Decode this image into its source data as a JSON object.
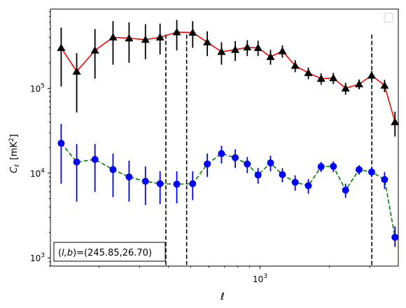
{
  "chart_data": {
    "type": "scatter",
    "title": "",
    "xlabel": "ℓ",
    "ylabel": "C_ℓ  [mK²]",
    "ylabel_main": "C",
    "ylabel_sub": "ℓ",
    "ylabel_unit": "[mK",
    "ylabel_unit_sup": "2",
    "ylabel_unit_close": "]",
    "xscale": "log",
    "yscale": "log",
    "xlim": [
      123,
      3980
    ],
    "ylim": [
      800,
      860000
    ],
    "x_ticks": [
      {
        "value": 1000,
        "base": "10",
        "exp": "3"
      }
    ],
    "y_ticks": [
      {
        "value": 1000,
        "base": "10",
        "exp": "3"
      },
      {
        "value": 10000,
        "base": "10",
        "exp": "4"
      },
      {
        "value": 100000,
        "base": "10",
        "exp": "5"
      }
    ],
    "grid": false,
    "legend": {
      "placement": "top-right",
      "entries": []
    },
    "annotation": {
      "text_prefix": "(",
      "text_vars": "l,b",
      "text_suffix": ")=(245.85,26.70)",
      "placement": "bottom-left"
    },
    "vlines": [
      390,
      480,
      3055
    ],
    "series": [
      {
        "marker": "triangle",
        "marker_color": "#000000",
        "line_color": "#ff0000",
        "line_style": "solid",
        "errorbar_color": "#000000",
        "points": [
          {
            "x": 137,
            "y": 300000,
            "lo": 105000,
            "hi": 520000
          },
          {
            "x": 160,
            "y": 158000,
            "lo": 52000,
            "hi": 260000
          },
          {
            "x": 192,
            "y": 280000,
            "lo": 130000,
            "hi": 500000
          },
          {
            "x": 230,
            "y": 400000,
            "lo": 190000,
            "hi": 620000
          },
          {
            "x": 270,
            "y": 390000,
            "lo": 200000,
            "hi": 600000
          },
          {
            "x": 318,
            "y": 375000,
            "lo": 220000,
            "hi": 570000
          },
          {
            "x": 368,
            "y": 400000,
            "lo": 250000,
            "hi": 580000
          },
          {
            "x": 435,
            "y": 460000,
            "lo": 280000,
            "hi": 640000
          },
          {
            "x": 510,
            "y": 455000,
            "lo": 300000,
            "hi": 620000
          },
          {
            "x": 590,
            "y": 350000,
            "lo": 240000,
            "hi": 470000
          },
          {
            "x": 680,
            "y": 270000,
            "lo": 190000,
            "hi": 350000
          },
          {
            "x": 780,
            "y": 285000,
            "lo": 210000,
            "hi": 360000
          },
          {
            "x": 880,
            "y": 305000,
            "lo": 240000,
            "hi": 370000
          },
          {
            "x": 980,
            "y": 300000,
            "lo": 240000,
            "hi": 365000
          },
          {
            "x": 1110,
            "y": 235000,
            "lo": 190000,
            "hi": 285000
          },
          {
            "x": 1250,
            "y": 275000,
            "lo": 230000,
            "hi": 320000
          },
          {
            "x": 1420,
            "y": 185000,
            "lo": 155000,
            "hi": 215000
          },
          {
            "x": 1620,
            "y": 152000,
            "lo": 128000,
            "hi": 176000
          },
          {
            "x": 1840,
            "y": 130000,
            "lo": 110000,
            "hi": 150000
          },
          {
            "x": 2080,
            "y": 132000,
            "lo": 112000,
            "hi": 152000
          },
          {
            "x": 2350,
            "y": 100000,
            "lo": 84000,
            "hi": 116000
          },
          {
            "x": 2690,
            "y": 112000,
            "lo": 97000,
            "hi": 127000
          },
          {
            "x": 3050,
            "y": 142000,
            "lo": 125000,
            "hi": 160000
          },
          {
            "x": 3470,
            "y": 108000,
            "lo": 90000,
            "hi": 126000
          },
          {
            "x": 3850,
            "y": 40000,
            "lo": 27000,
            "hi": 53000
          }
        ]
      },
      {
        "marker": "circle",
        "marker_color": "#0000ff",
        "line_color": "#008000",
        "line_style": "dashed",
        "errorbar_color": "#0000ff",
        "points": [
          {
            "x": 137,
            "y": 22500,
            "lo": 7500,
            "hi": 38000
          },
          {
            "x": 160,
            "y": 13500,
            "lo": 4600,
            "hi": 22000
          },
          {
            "x": 192,
            "y": 14500,
            "lo": 6000,
            "hi": 22000
          },
          {
            "x": 230,
            "y": 11000,
            "lo": 5200,
            "hi": 17000
          },
          {
            "x": 270,
            "y": 9000,
            "lo": 4600,
            "hi": 14000
          },
          {
            "x": 318,
            "y": 8000,
            "lo": 4200,
            "hi": 12000
          },
          {
            "x": 368,
            "y": 7500,
            "lo": 4300,
            "hi": 10500
          },
          {
            "x": 435,
            "y": 7400,
            "lo": 4400,
            "hi": 10500
          },
          {
            "x": 510,
            "y": 7500,
            "lo": 4800,
            "hi": 10500
          },
          {
            "x": 590,
            "y": 12800,
            "lo": 9000,
            "hi": 17000
          },
          {
            "x": 680,
            "y": 17000,
            "lo": 13000,
            "hi": 21000
          },
          {
            "x": 780,
            "y": 15200,
            "lo": 11500,
            "hi": 19000
          },
          {
            "x": 880,
            "y": 12800,
            "lo": 10000,
            "hi": 15500
          },
          {
            "x": 980,
            "y": 9500,
            "lo": 7500,
            "hi": 11500
          },
          {
            "x": 1110,
            "y": 13200,
            "lo": 10500,
            "hi": 16000
          },
          {
            "x": 1250,
            "y": 9600,
            "lo": 7800,
            "hi": 11400
          },
          {
            "x": 1420,
            "y": 7800,
            "lo": 6200,
            "hi": 9400
          },
          {
            "x": 1620,
            "y": 7100,
            "lo": 5700,
            "hi": 8500
          },
          {
            "x": 1840,
            "y": 11900,
            "lo": 10300,
            "hi": 13500
          },
          {
            "x": 2080,
            "y": 12000,
            "lo": 10300,
            "hi": 13700
          },
          {
            "x": 2350,
            "y": 6300,
            "lo": 5100,
            "hi": 7500
          },
          {
            "x": 2690,
            "y": 11000,
            "lo": 9600,
            "hi": 12400
          },
          {
            "x": 3050,
            "y": 10300,
            "lo": 9000,
            "hi": 11600
          },
          {
            "x": 3470,
            "y": 8400,
            "lo": 6500,
            "hi": 10300
          },
          {
            "x": 3850,
            "y": 1750,
            "lo": 1350,
            "hi": 2350
          }
        ]
      }
    ]
  }
}
